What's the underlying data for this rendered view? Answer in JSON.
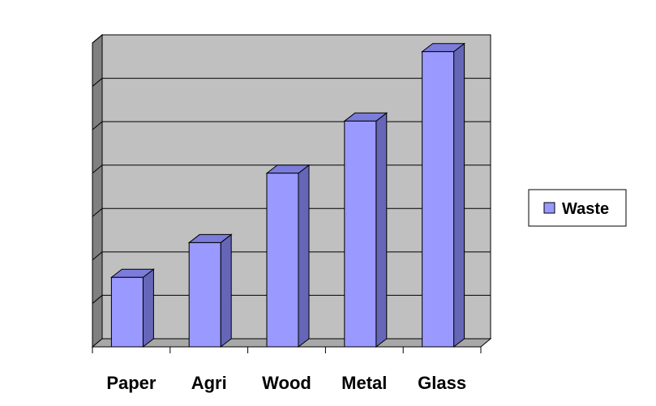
{
  "chart_data": {
    "type": "bar",
    "categories": [
      "Paper",
      "Agri",
      "Wood",
      "Metal",
      "Glass"
    ],
    "series": [
      {
        "name": "Waste",
        "values": [
          1.6,
          2.4,
          4.0,
          5.2,
          6.8
        ],
        "color": "#9999ff"
      }
    ],
    "ylim": [
      0,
      7
    ],
    "y_gridlines": [
      1,
      2,
      3,
      4,
      5,
      6,
      7
    ],
    "y_tick_labels_shown": false,
    "grid": true,
    "legend": "right",
    "style": "3d-clustered-column",
    "colors": {
      "plot_back_wall": "#c0c0c0",
      "plot_side_wall": "#808080",
      "plot_floor": "#a8a8a8",
      "bar_front": "#9999ff",
      "bar_top": "#7c7cdc",
      "bar_side": "#6666b8",
      "gridline": "#000000"
    }
  }
}
